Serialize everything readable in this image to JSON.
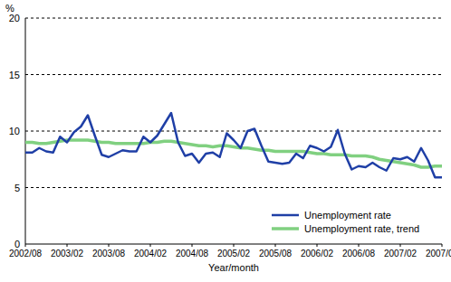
{
  "chart_data": {
    "type": "line",
    "y_label": "%",
    "x_label": "Year/month",
    "categories": [
      "2002/08",
      null,
      null,
      null,
      null,
      null,
      "2003/02",
      null,
      null,
      null,
      null,
      null,
      "2003/08",
      null,
      null,
      null,
      null,
      null,
      "2004/02",
      null,
      null,
      null,
      null,
      null,
      "2004/08",
      null,
      null,
      null,
      null,
      null,
      "2005/02",
      null,
      null,
      null,
      null,
      null,
      "2005/08",
      null,
      null,
      null,
      null,
      null,
      "2006/02",
      null,
      null,
      null,
      null,
      null,
      "2006/08",
      null,
      null,
      null,
      null,
      null,
      "2007/02",
      null,
      null,
      null,
      null,
      null,
      "2007/08"
    ],
    "series": [
      {
        "name": "Unemployment rate",
        "color": "#1f3fa6",
        "values": [
          8.1,
          8.1,
          8.5,
          8.2,
          8.1,
          9.5,
          9.0,
          9.9,
          10.4,
          11.4,
          9.6,
          7.9,
          7.7,
          8.0,
          8.3,
          8.2,
          8.2,
          9.5,
          9.0,
          9.6,
          10.6,
          11.6,
          9.0,
          7.8,
          8.0,
          7.2,
          8.0,
          8.1,
          7.7,
          9.8,
          9.2,
          8.5,
          10.0,
          10.2,
          8.7,
          7.3,
          7.2,
          7.1,
          7.2,
          8.0,
          7.6,
          8.7,
          8.5,
          8.2,
          8.6,
          10.1,
          8.0,
          6.6,
          6.9,
          6.8,
          7.2,
          6.8,
          6.5,
          7.6,
          7.5,
          7.7,
          7.3,
          8.5,
          7.4,
          5.9,
          5.9
        ]
      },
      {
        "name": "Unemployment rate, trend",
        "color": "#80d080",
        "values": [
          9.0,
          9.0,
          8.9,
          8.9,
          9.0,
          9.1,
          9.2,
          9.2,
          9.2,
          9.2,
          9.1,
          9.0,
          9.0,
          8.9,
          8.9,
          8.9,
          8.9,
          8.9,
          9.0,
          9.0,
          9.1,
          9.1,
          9.0,
          8.9,
          8.8,
          8.7,
          8.7,
          8.6,
          8.7,
          8.7,
          8.6,
          8.5,
          8.5,
          8.4,
          8.3,
          8.3,
          8.2,
          8.2,
          8.2,
          8.2,
          8.2,
          8.1,
          8.0,
          8.0,
          7.9,
          7.9,
          7.9,
          7.8,
          7.8,
          7.8,
          7.7,
          7.5,
          7.4,
          7.3,
          7.2,
          7.1,
          7.0,
          6.8,
          6.8,
          6.9,
          6.9
        ]
      }
    ],
    "ylim": [
      0,
      20
    ],
    "yticks": [
      0,
      5,
      10,
      15,
      20
    ],
    "grid": true,
    "legend": "bottom-right"
  }
}
